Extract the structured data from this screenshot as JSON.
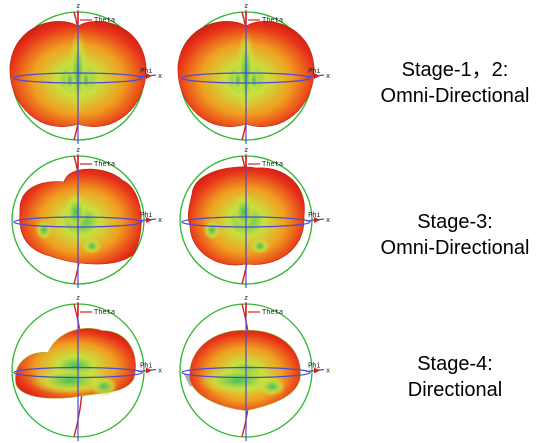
{
  "axis_labels": {
    "theta": "Theta",
    "phi": "Phi",
    "z": "z",
    "x": "x"
  },
  "stages": [
    {
      "id": "stage-1-2",
      "line1": "Stage-1，2:",
      "line2": "Omni-Directional"
    },
    {
      "id": "stage-3",
      "line1": "Stage-3:",
      "line2": "Omni-Directional"
    },
    {
      "id": "stage-4",
      "line1": "Stage-4:",
      "line2": "Directional"
    }
  ],
  "colors": {
    "sphere_outline": "#2db52d",
    "equator_axis": "#4a4ad8",
    "z_axis": "#d42020",
    "pattern_hot": "#e8301a",
    "pattern_mid": "#f0a020",
    "pattern_low": "#c8e040",
    "pattern_null": "#40c060",
    "ground_plane": "#8090a0"
  }
}
